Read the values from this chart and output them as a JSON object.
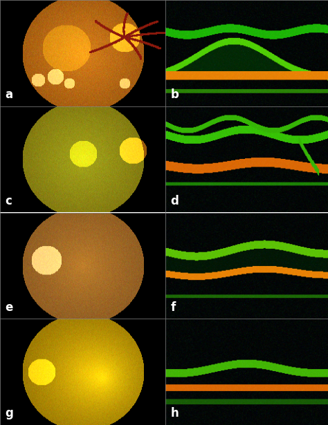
{
  "labels": [
    "a",
    "b",
    "c",
    "d",
    "e",
    "f",
    "g",
    "h"
  ],
  "nrows": 4,
  "ncols": 2,
  "border_color": "#888888",
  "label_color": "#ffffff",
  "label_fontsize": 12,
  "label_fontweight": "bold",
  "background_color": "#000000",
  "fig_width": 4.74,
  "fig_height": 6.15,
  "dpi": 100
}
